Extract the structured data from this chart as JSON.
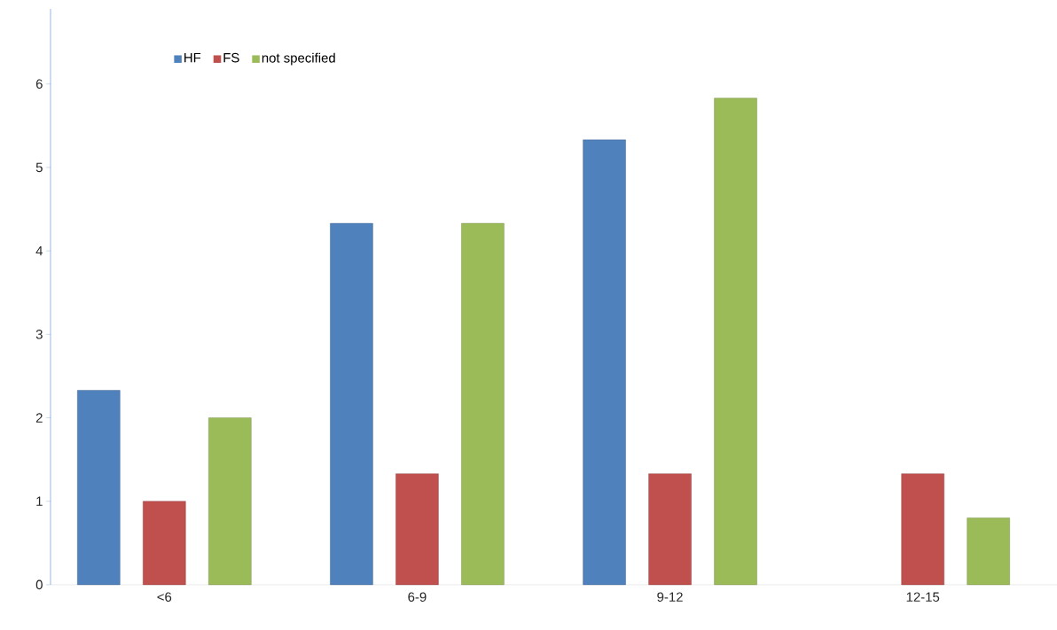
{
  "chart_data": {
    "type": "bar",
    "categories": [
      "<6",
      "6-9",
      "9-12",
      "12-15"
    ],
    "series": [
      {
        "name": "HF",
        "color": "#4f81bd",
        "values": [
          2.33,
          4.33,
          5.33,
          null
        ]
      },
      {
        "name": "FS",
        "color": "#c0504d",
        "values": [
          1,
          1.33,
          1.33,
          1.33
        ]
      },
      {
        "name": "not specified",
        "color": "#9bbb59",
        "values": [
          2,
          4.33,
          5.83,
          0.8
        ]
      }
    ],
    "ylim": [
      0,
      6.9
    ],
    "yticks": [
      0,
      1,
      2,
      3,
      4,
      5,
      6
    ],
    "legend": "top left",
    "grid": false
  }
}
